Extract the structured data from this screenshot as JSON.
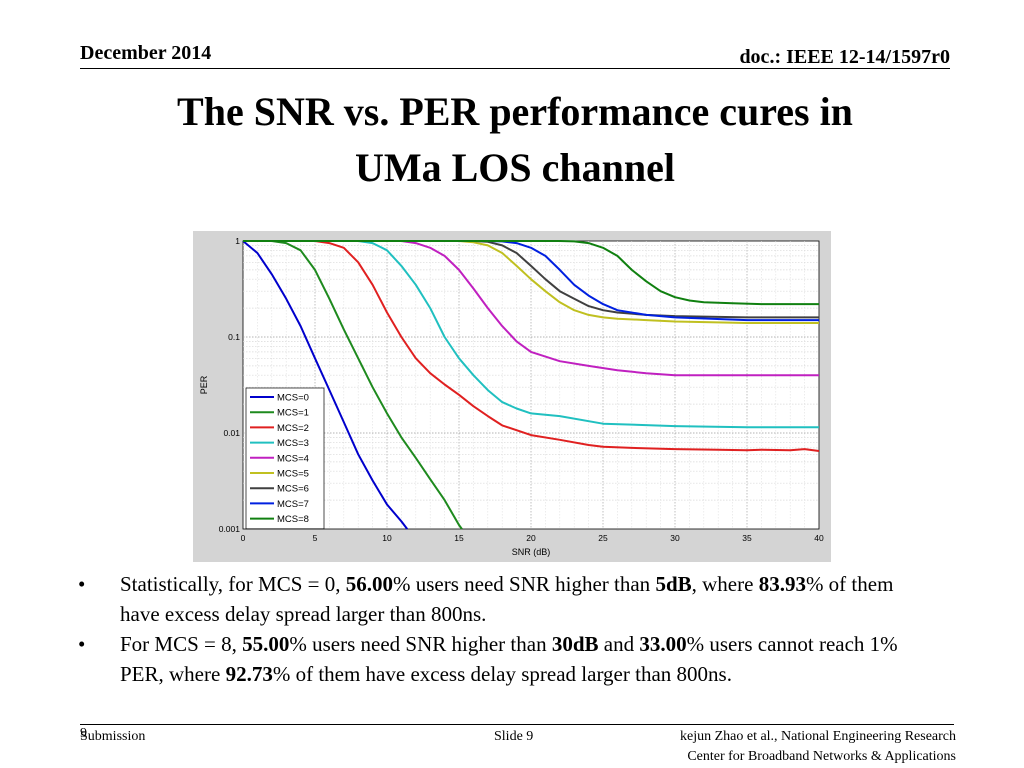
{
  "header": {
    "date": "December 2014",
    "doc": "doc.: IEEE 12-14/1597r0"
  },
  "title_line1": "The SNR vs. PER performance cures in",
  "title_line2": "UMa LOS channel",
  "colors": {
    "mcs0": "#0000cc",
    "mcs1": "#1e8a1e",
    "mcs2": "#e02020",
    "mcs3": "#20c0c0",
    "mcs4": "#c020c0",
    "mcs5": "#c0c020",
    "mcs6": "#404040",
    "mcs7": "#0020e0",
    "mcs8": "#108010"
  },
  "chart_data": {
    "type": "line",
    "title": "",
    "xlabel": "SNR (dB)",
    "ylabel": "PER",
    "xlim": [
      0,
      40
    ],
    "ylim": [
      0.001,
      1
    ],
    "yscale": "log",
    "grid": true,
    "legend_position": "bottom-left",
    "x_ticks": [
      "0",
      "5",
      "10",
      "15",
      "20",
      "25",
      "30",
      "35",
      "40"
    ],
    "y_ticks": [
      "1",
      "0.1",
      "0.01",
      "0.001"
    ],
    "y_tick_values": [
      1,
      0.1,
      0.01,
      0.001
    ],
    "series": [
      {
        "name": "MCS=0",
        "color": "#0000cc",
        "x": [
          0,
          1,
          2,
          3,
          4,
          5,
          6,
          7,
          8,
          9,
          10,
          11,
          11.4
        ],
        "y": [
          1,
          0.75,
          0.45,
          0.25,
          0.13,
          0.06,
          0.028,
          0.013,
          0.006,
          0.0032,
          0.0018,
          0.0012,
          0.001
        ]
      },
      {
        "name": "MCS=1",
        "color": "#1e8a1e",
        "x": [
          0,
          2,
          3,
          4,
          5,
          6,
          7,
          8,
          9,
          10,
          11,
          12,
          13,
          14,
          15,
          15.2
        ],
        "y": [
          1,
          1,
          0.95,
          0.8,
          0.5,
          0.25,
          0.12,
          0.06,
          0.03,
          0.016,
          0.009,
          0.0055,
          0.0033,
          0.002,
          0.0011,
          0.001
        ]
      },
      {
        "name": "MCS=2",
        "color": "#e02020",
        "x": [
          0,
          5,
          6,
          7,
          8,
          9,
          10,
          11,
          12,
          13,
          14,
          15,
          16,
          17,
          18,
          20,
          22,
          24,
          25,
          27,
          30,
          33,
          35,
          36,
          38,
          39,
          40
        ],
        "y": [
          1,
          1,
          0.95,
          0.85,
          0.6,
          0.35,
          0.18,
          0.1,
          0.06,
          0.042,
          0.032,
          0.025,
          0.019,
          0.015,
          0.012,
          0.0095,
          0.0085,
          0.0075,
          0.0072,
          0.007,
          0.0068,
          0.0067,
          0.0066,
          0.0067,
          0.0066,
          0.0068,
          0.0065
        ]
      },
      {
        "name": "MCS=3",
        "color": "#20c0c0",
        "x": [
          0,
          8,
          9,
          10,
          11,
          12,
          13,
          14,
          15,
          16,
          17,
          18,
          19,
          20,
          22,
          25,
          30,
          35,
          40
        ],
        "y": [
          1,
          1,
          0.95,
          0.8,
          0.55,
          0.35,
          0.2,
          0.1,
          0.06,
          0.04,
          0.028,
          0.021,
          0.018,
          0.016,
          0.015,
          0.0125,
          0.0118,
          0.0115,
          0.0115
        ]
      },
      {
        "name": "MCS=4",
        "color": "#c020c0",
        "x": [
          0,
          11,
          12,
          13,
          14,
          15,
          16,
          17,
          18,
          19,
          20,
          22,
          24,
          26,
          28,
          30,
          35,
          40
        ],
        "y": [
          1,
          1,
          0.95,
          0.85,
          0.7,
          0.5,
          0.32,
          0.2,
          0.13,
          0.09,
          0.07,
          0.056,
          0.05,
          0.045,
          0.042,
          0.04,
          0.04,
          0.04
        ]
      },
      {
        "name": "MCS=5",
        "color": "#c0c020",
        "x": [
          0,
          15,
          16,
          17,
          18,
          19,
          20,
          21,
          22,
          23,
          24,
          25,
          26,
          28,
          30,
          35,
          40
        ],
        "y": [
          1,
          1,
          0.97,
          0.9,
          0.75,
          0.55,
          0.4,
          0.3,
          0.23,
          0.19,
          0.17,
          0.16,
          0.155,
          0.15,
          0.145,
          0.14,
          0.14
        ]
      },
      {
        "name": "MCS=6",
        "color": "#404040",
        "x": [
          0,
          16,
          17,
          18,
          19,
          20,
          21,
          22,
          23,
          24,
          25,
          26,
          28,
          30,
          35,
          40
        ],
        "y": [
          1,
          1,
          0.98,
          0.9,
          0.75,
          0.55,
          0.4,
          0.3,
          0.25,
          0.21,
          0.19,
          0.18,
          0.17,
          0.165,
          0.16,
          0.16
        ]
      },
      {
        "name": "MCS=7",
        "color": "#0020e0",
        "x": [
          0,
          17,
          18,
          19,
          20,
          21,
          22,
          23,
          24,
          25,
          26,
          28,
          30,
          35,
          40
        ],
        "y": [
          1,
          1,
          0.99,
          0.95,
          0.85,
          0.7,
          0.5,
          0.35,
          0.27,
          0.22,
          0.19,
          0.17,
          0.16,
          0.15,
          0.15
        ]
      },
      {
        "name": "MCS=8",
        "color": "#108010",
        "x": [
          0,
          22,
          23,
          24,
          25,
          26,
          27,
          28,
          29,
          30,
          31,
          32,
          34,
          36,
          38,
          40
        ],
        "y": [
          1,
          1,
          0.99,
          0.95,
          0.85,
          0.7,
          0.5,
          0.38,
          0.3,
          0.26,
          0.24,
          0.23,
          0.225,
          0.22,
          0.22,
          0.22
        ]
      }
    ]
  },
  "bullets": [
    {
      "parts": [
        {
          "t": "Statistically, for MCS = 0, ",
          "b": false
        },
        {
          "t": "56.00",
          "b": true
        },
        {
          "t": "% users need SNR higher than ",
          "b": false
        },
        {
          "t": "5dB",
          "b": true
        },
        {
          "t": ", where ",
          "b": false
        },
        {
          "t": "83.93",
          "b": true
        },
        {
          "t": "% of them have excess delay spread larger than 800ns.",
          "b": false
        }
      ]
    },
    {
      "parts": [
        {
          "t": "For MCS = 8, ",
          "b": false
        },
        {
          "t": "55.00",
          "b": true
        },
        {
          "t": "% users need SNR higher than ",
          "b": false
        },
        {
          "t": "30dB",
          "b": true
        },
        {
          "t": " and ",
          "b": false
        },
        {
          "t": "33.00",
          "b": true
        },
        {
          "t": "% users cannot reach 1% PER, where ",
          "b": false
        },
        {
          "t": "92.73",
          "b": true
        },
        {
          "t": "% of them have excess delay spread larger than 800ns.",
          "b": false
        }
      ]
    }
  ],
  "bullet_symbol": "•",
  "footer": {
    "left": "Submission",
    "page_num": "9",
    "slide": "Slide 9",
    "right_line1": "kejun Zhao et al., National Engineering Research",
    "right_line2": "Center for Broadband Networks & Applications"
  }
}
